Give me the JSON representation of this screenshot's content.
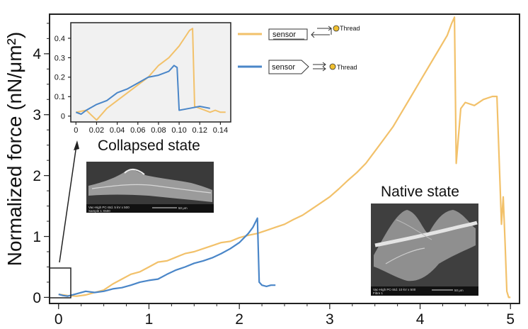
{
  "colors": {
    "sensor_thread": "#f2c16a",
    "sensor_hook": "#4a86c8",
    "thread_dot": "#f0c030",
    "inset_bg": "#f1f1f1"
  },
  "icons": {
    "collapsed_micrograph": "sem-image-collapsed-state",
    "native_micrograph": "sem-image-native-state"
  },
  "legend": {
    "row1": {
      "label": "sensor",
      "target": "Thread"
    },
    "row2": {
      "label": "sensor",
      "target": "Thread"
    }
  },
  "captions": {
    "collapsed": "Collapsed state",
    "native": "Native state"
  },
  "micrograph_text": {
    "collapsed": [
      "Vac-High  PC-Std.  5 kV  x 500",
      "Sample 1 X500",
      "50 μm"
    ],
    "native": [
      "Vac-High  PC-Std.  10 kV  x 500",
      "Fibre 1",
      "50 μm"
    ]
  },
  "chart_data": [
    {
      "type": "line",
      "title": "",
      "xlabel": "",
      "ylabel": "Normalized force (nN/μm²)",
      "xlim": [
        -0.1,
        5.1
      ],
      "ylim": [
        -0.1,
        4.65
      ],
      "xticks": [
        0,
        1,
        2,
        3,
        4,
        5
      ],
      "yticks": [
        0,
        1,
        2,
        3,
        4
      ],
      "grid": false,
      "series": [
        {
          "color": "#f2c16a",
          "x": [
            0,
            0.1,
            0.2,
            0.3,
            0.4,
            0.5,
            0.6,
            0.7,
            0.8,
            0.9,
            1.0,
            1.1,
            1.2,
            1.3,
            1.4,
            1.5,
            1.6,
            1.7,
            1.8,
            1.9,
            2.0,
            2.1,
            2.2,
            2.3,
            2.4,
            2.5,
            2.6,
            2.7,
            2.8,
            2.9,
            3.0,
            3.1,
            3.2,
            3.3,
            3.4,
            3.5,
            3.6,
            3.7,
            3.8,
            3.9,
            4.0,
            4.1,
            4.2,
            4.3,
            4.35,
            4.38,
            4.4,
            4.45,
            4.5,
            4.6,
            4.7,
            4.8,
            4.85,
            4.9,
            4.92,
            4.94,
            4.96,
            4.98,
            5.0
          ],
          "y": [
            0.05,
            0.03,
            0.02,
            0.04,
            0.08,
            0.12,
            0.22,
            0.3,
            0.38,
            0.42,
            0.5,
            0.58,
            0.6,
            0.66,
            0.72,
            0.75,
            0.8,
            0.85,
            0.9,
            0.92,
            0.98,
            1.02,
            1.05,
            1.1,
            1.15,
            1.2,
            1.28,
            1.35,
            1.45,
            1.55,
            1.65,
            1.78,
            1.92,
            2.05,
            2.2,
            2.4,
            2.6,
            2.8,
            3.05,
            3.3,
            3.55,
            3.8,
            4.05,
            4.3,
            4.5,
            4.6,
            2.2,
            3.1,
            3.2,
            3.15,
            3.25,
            3.3,
            3.3,
            1.2,
            1.65,
            0.9,
            0.1,
            0.0,
            0.0
          ]
        },
        {
          "color": "#4a86c8",
          "x": [
            0,
            0.05,
            0.1,
            0.2,
            0.3,
            0.4,
            0.5,
            0.6,
            0.7,
            0.8,
            0.9,
            1.0,
            1.1,
            1.2,
            1.3,
            1.4,
            1.5,
            1.6,
            1.7,
            1.8,
            1.9,
            2.0,
            2.1,
            2.15,
            2.2,
            2.22,
            2.25,
            2.3,
            2.35,
            2.4
          ],
          "y": [
            0.05,
            0.03,
            0.02,
            0.06,
            0.1,
            0.08,
            0.1,
            0.14,
            0.16,
            0.2,
            0.25,
            0.28,
            0.3,
            0.38,
            0.45,
            0.5,
            0.56,
            0.6,
            0.65,
            0.72,
            0.8,
            0.9,
            1.05,
            1.15,
            1.3,
            0.25,
            0.2,
            0.18,
            0.2,
            0.2
          ]
        }
      ]
    },
    {
      "type": "line",
      "title": "",
      "xlabel": "",
      "ylabel": "",
      "xlim": [
        -0.005,
        0.15
      ],
      "ylim": [
        -0.03,
        0.48
      ],
      "xticks": [
        0,
        0.02,
        0.04,
        0.06,
        0.08,
        0.1,
        0.12,
        0.14
      ],
      "xtick_labels": [
        "0",
        "0.02",
        "0.04",
        "0.06",
        "0.08",
        "0.10",
        "0.12",
        "0.14"
      ],
      "yticks": [
        0,
        0.1,
        0.2,
        0.3,
        0.4
      ],
      "ytick_labels": [
        "0",
        "0.1",
        "0.2",
        "0.3",
        "0.4"
      ],
      "grid": false,
      "series": [
        {
          "color": "#f2c16a",
          "x": [
            0,
            0.01,
            0.02,
            0.03,
            0.04,
            0.05,
            0.06,
            0.07,
            0.08,
            0.09,
            0.1,
            0.105,
            0.11,
            0.113,
            0.115,
            0.12,
            0.125,
            0.13,
            0.135,
            0.14,
            0.145
          ],
          "y": [
            0.02,
            0.03,
            -0.02,
            0.04,
            0.08,
            0.12,
            0.16,
            0.2,
            0.26,
            0.3,
            0.36,
            0.4,
            0.44,
            0.45,
            0.05,
            0.04,
            0.03,
            0.02,
            0.03,
            0.02,
            0.02
          ]
        },
        {
          "color": "#4a86c8",
          "x": [
            0,
            0.005,
            0.01,
            0.02,
            0.03,
            0.04,
            0.05,
            0.06,
            0.07,
            0.08,
            0.09,
            0.095,
            0.098,
            0.1,
            0.11,
            0.12,
            0.13
          ],
          "y": [
            0.02,
            0.01,
            0.03,
            0.06,
            0.08,
            0.12,
            0.14,
            0.17,
            0.2,
            0.21,
            0.23,
            0.26,
            0.25,
            0.03,
            0.04,
            0.05,
            0.04
          ]
        }
      ]
    }
  ]
}
